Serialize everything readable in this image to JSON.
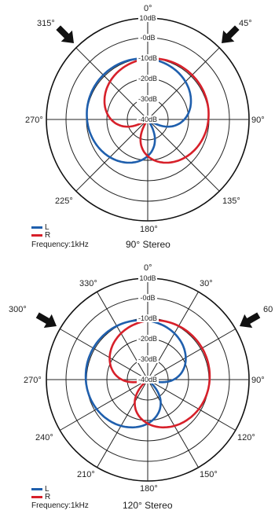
{
  "colors": {
    "L": "#1f5fad",
    "R": "#d7202a",
    "grid": "#222222"
  },
  "db_labels": [
    "10dB",
    "-0dB",
    "-10dB",
    "-20dB",
    "-30dB",
    "-40dB"
  ],
  "plots": [
    {
      "angle_labels": [
        "0°",
        "45°",
        "90°",
        "135°",
        "180°",
        "225°",
        "270°",
        "315°"
      ],
      "arrows": [
        "arrow-left",
        "arrow-right"
      ],
      "legend": {
        "L": "L",
        "R": "R"
      },
      "frequency": "Frequency:1kHz",
      "title": "90° Stereo",
      "chart_data": {
        "type": "polar",
        "mic_axis_offset_deg": 45,
        "series": [
          {
            "name": "L",
            "steer_deg": -45
          },
          {
            "name": "R",
            "steer_deg": 45
          }
        ]
      }
    },
    {
      "angle_labels": [
        "0°",
        "30°",
        "60",
        "90°",
        "120°",
        "150°",
        "180°",
        "210°",
        "240°",
        "270°",
        "300°",
        "330°"
      ],
      "arrows": [
        "arrow-left",
        "arrow-right"
      ],
      "legend": {
        "L": "L",
        "R": "R"
      },
      "frequency": "Frequency:1kHz",
      "title": "120° Stereo",
      "chart_data": {
        "type": "polar",
        "mic_axis_offset_deg": 60,
        "series": [
          {
            "name": "L",
            "steer_deg": -60
          },
          {
            "name": "R",
            "steer_deg": 60
          }
        ]
      }
    }
  ]
}
